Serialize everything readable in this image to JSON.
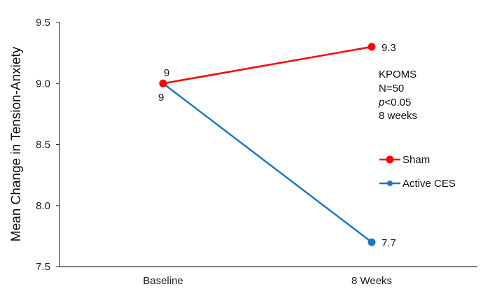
{
  "chart_data": {
    "type": "line",
    "title": "",
    "xlabel": "",
    "ylabel": "Mean Change in Tension-Anxiety",
    "categories": [
      "Baseline",
      "8 Weeks"
    ],
    "ylim": [
      7.5,
      9.5
    ],
    "yticks": [
      7.5,
      8.0,
      8.5,
      9.0,
      9.5
    ],
    "ytick_labels": [
      "7.5",
      "8.0",
      "8.5",
      "9.0",
      "9.5"
    ],
    "series": [
      {
        "name": "Sham",
        "color": "#ff0000",
        "values": [
          9,
          9.3
        ],
        "labels": [
          "9",
          "9.3"
        ]
      },
      {
        "name": "Active CES",
        "color": "#1f77c4",
        "values": [
          9,
          7.7
        ],
        "labels": [
          "9",
          "7.7"
        ]
      }
    ],
    "annotation": {
      "line1": "KPOMS",
      "line2": "N=50",
      "line3_italic": "p",
      "line3_rest": "<0.05",
      "line4": "8 weeks"
    },
    "legend_position": "right"
  }
}
